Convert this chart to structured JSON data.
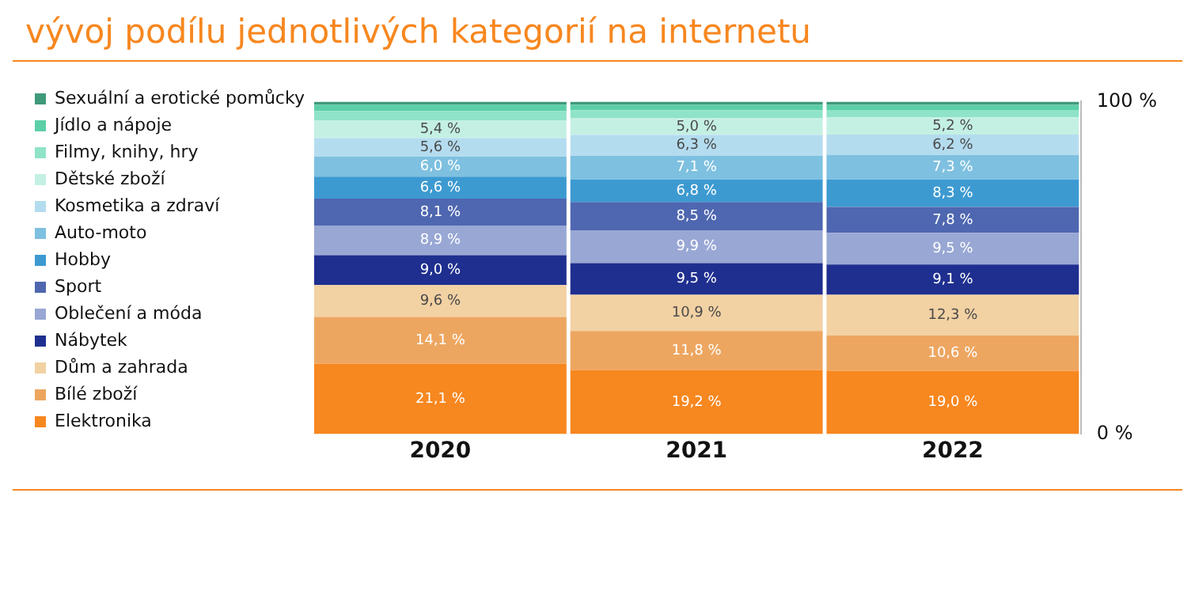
{
  "chart_data": {
    "type": "bar",
    "stacked": true,
    "title": "vývoj podílu jednotlivých kategorií na internetu",
    "categories": [
      "2020",
      "2021",
      "2022"
    ],
    "series": [
      {
        "name": "Elektronika",
        "color": "#f7871f",
        "values": [
          21.1,
          19.2,
          19.0
        ],
        "value_labels": [
          "21,1 %",
          "19,2 %",
          "19,0 %"
        ]
      },
      {
        "name": "Bílé zboží",
        "color": "#eda660",
        "values": [
          14.1,
          11.8,
          10.6
        ],
        "value_labels": [
          "14,1 %",
          "11,8 %",
          "10,6 %"
        ]
      },
      {
        "name": "Dům a zahrada",
        "color": "#f2d1a3",
        "values": [
          9.6,
          10.9,
          12.3
        ],
        "value_labels": [
          "9,6 %",
          "10,9 %",
          "12,3 %"
        ]
      },
      {
        "name": "Nábytek",
        "color": "#1f2f8f",
        "values": [
          9.0,
          9.5,
          9.1
        ],
        "value_labels": [
          "9,0 %",
          "9,5 %",
          "9,1 %"
        ]
      },
      {
        "name": "Oblečení a móda",
        "color": "#98a7d4",
        "values": [
          8.9,
          9.9,
          9.5
        ],
        "value_labels": [
          "8,9 %",
          "9,9 %",
          "9,5 %"
        ]
      },
      {
        "name": "Sport",
        "color": "#4e67b0",
        "values": [
          8.1,
          8.5,
          7.8
        ],
        "value_labels": [
          "8,1 %",
          "8,5 %",
          "7,8 %"
        ]
      },
      {
        "name": "Hobby",
        "color": "#3d9ad1",
        "values": [
          6.6,
          6.8,
          8.3
        ],
        "value_labels": [
          "6,6 %",
          "6,8 %",
          "8,3 %"
        ]
      },
      {
        "name": "Auto-moto",
        "color": "#7ec0e0",
        "values": [
          6.0,
          7.1,
          7.3
        ],
        "value_labels": [
          "6,0 %",
          "7,1 %",
          "7,3 %"
        ]
      },
      {
        "name": "Kosmetika a zdraví",
        "color": "#b4dcef",
        "values": [
          5.6,
          6.3,
          6.2
        ],
        "value_labels": [
          "5,6 %",
          "6,3 %",
          "6,2 %"
        ]
      },
      {
        "name": "Dětské zboží",
        "color": "#c4f0e4",
        "values": [
          5.4,
          5.0,
          5.2
        ],
        "value_labels": [
          "5,4 %",
          "5,0 %",
          "5,2 %"
        ]
      },
      {
        "name": "Filmy, knihy, hry",
        "color": "#8fe3c8",
        "values": [
          2.8,
          2.4,
          2.2
        ]
      },
      {
        "name": "Jídlo a nápoje",
        "color": "#5ccfa7",
        "values": [
          1.8,
          1.6,
          1.5
        ]
      },
      {
        "name": "Sexuální a erotické pomůcky",
        "color": "#3f9a7a",
        "values": [
          1.0,
          1.0,
          1.0
        ]
      }
    ],
    "ylim": [
      0,
      100
    ],
    "yticks": [
      {
        "value": 0,
        "label": "0 %"
      },
      {
        "value": 100,
        "label": "100 %"
      }
    ],
    "grid": false,
    "legend": "left"
  }
}
